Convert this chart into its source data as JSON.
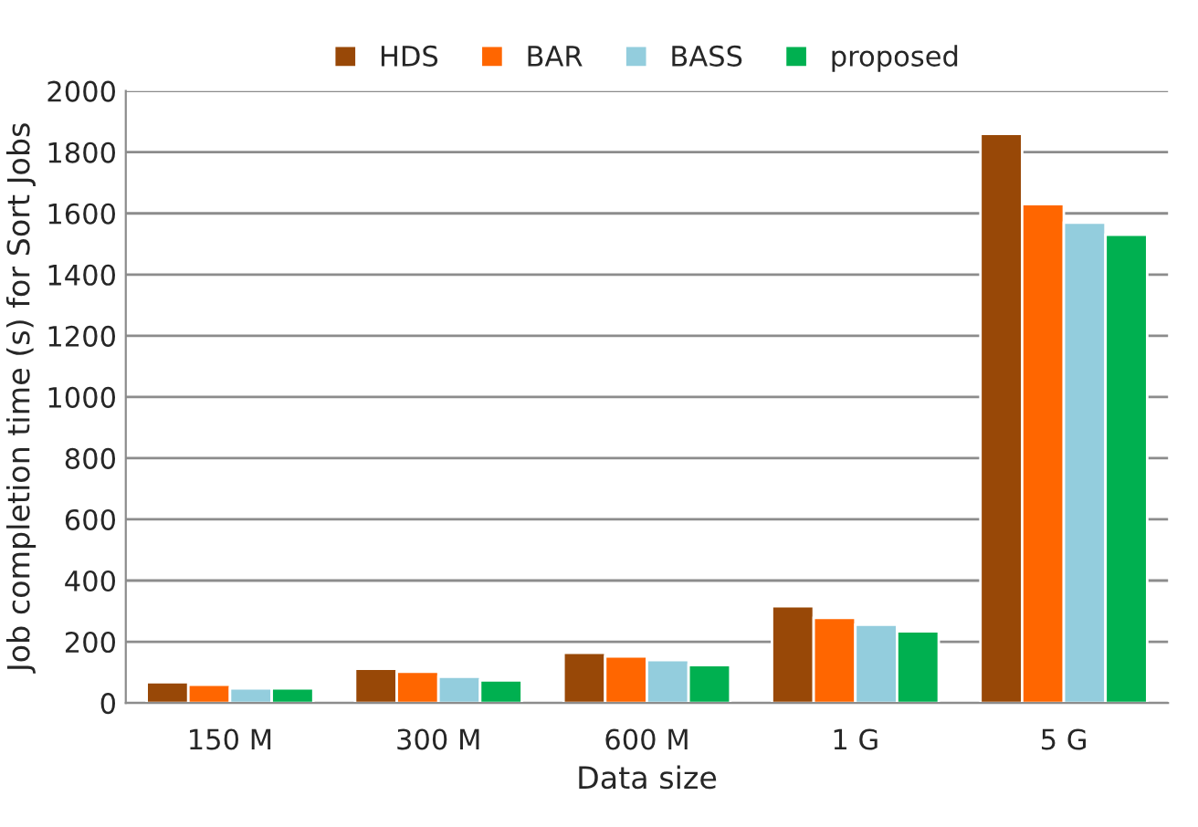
{
  "chart_data": {
    "type": "bar",
    "xlabel": "Data size",
    "ylabel": "Job completion time (s) for Sort Jobs",
    "categories": [
      "150 M",
      "300 M",
      "600 M",
      "1 G",
      "5 G"
    ],
    "series": [
      {
        "name": "HDS",
        "color": "#984807",
        "values": [
          68,
          112,
          164,
          316,
          1860
        ]
      },
      {
        "name": "BAR",
        "color": "#ff6600",
        "values": [
          60,
          102,
          152,
          278,
          1630
        ]
      },
      {
        "name": "BASS",
        "color": "#93cddd",
        "values": [
          48,
          86,
          140,
          256,
          1570
        ]
      },
      {
        "name": "proposed",
        "color": "#00b050",
        "values": [
          48,
          74,
          124,
          234,
          1530
        ]
      }
    ],
    "ylim": [
      0,
      2000
    ],
    "yticks": [
      0,
      200,
      400,
      600,
      800,
      1000,
      1200,
      1400,
      1600,
      1800,
      2000
    ],
    "grid": "y",
    "legend": "top"
  }
}
